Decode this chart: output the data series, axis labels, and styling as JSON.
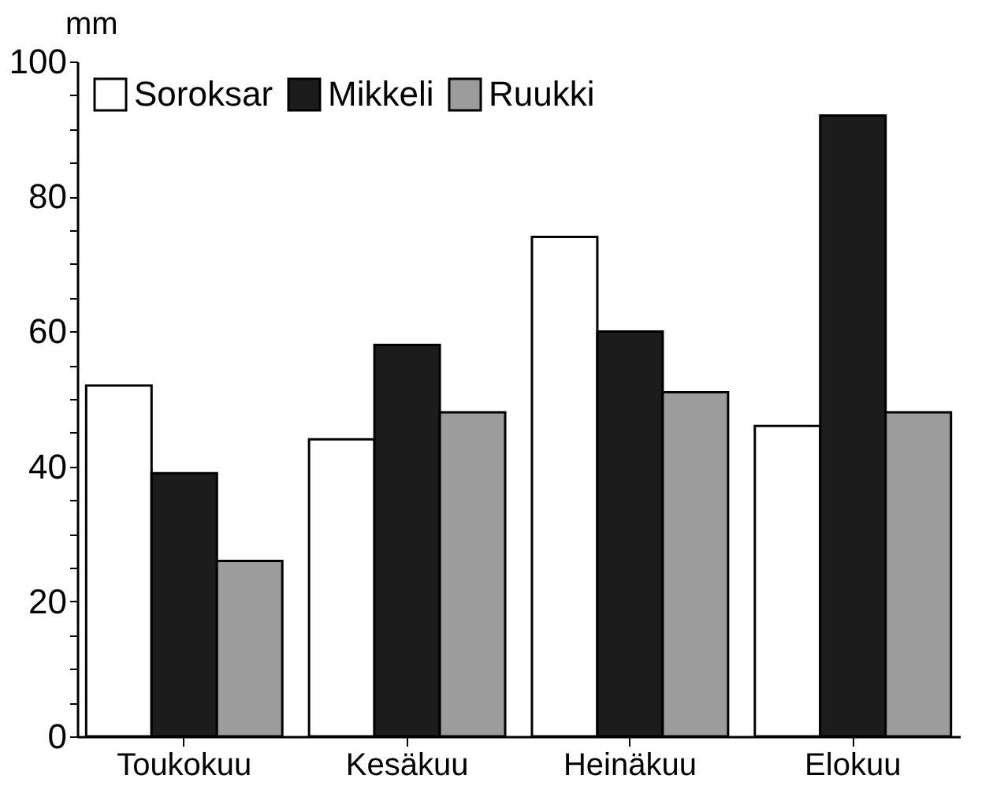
{
  "chart_data": {
    "type": "bar",
    "ylabel": "mm",
    "categories": [
      "Toukokuu",
      "Kesäkuu",
      "Heinäkuu",
      "Elokuu"
    ],
    "series": [
      {
        "name": "Soroksar",
        "color": "#ffffff",
        "values": [
          52,
          44,
          74,
          46
        ]
      },
      {
        "name": "Mikkeli",
        "color": "#1c1c1c",
        "values": [
          39,
          58,
          60,
          92
        ]
      },
      {
        "name": "Ruukki",
        "color": "#9c9c9c",
        "values": [
          26,
          48,
          51,
          48
        ]
      }
    ],
    "ylim": [
      0,
      100
    ],
    "yticks": [
      0,
      {
        "value": 5,
        "label": null
      },
      {
        "value": 10,
        "label": null
      },
      {
        "value": 15,
        "label": null
      },
      20,
      {
        "value": 25,
        "label": null
      },
      {
        "value": 30,
        "label": null
      },
      {
        "value": 35,
        "label": null
      },
      40,
      {
        "value": 45,
        "label": null
      },
      {
        "value": 50,
        "label": null
      },
      {
        "value": 55,
        "label": null
      },
      60,
      {
        "value": 65,
        "label": null
      },
      {
        "value": 70,
        "label": null
      },
      {
        "value": 75,
        "label": null
      },
      80,
      {
        "value": 85,
        "label": null
      },
      {
        "value": 90,
        "label": null
      },
      {
        "value": 95,
        "label": null
      },
      100
    ],
    "grid": false,
    "legend": "top left"
  }
}
